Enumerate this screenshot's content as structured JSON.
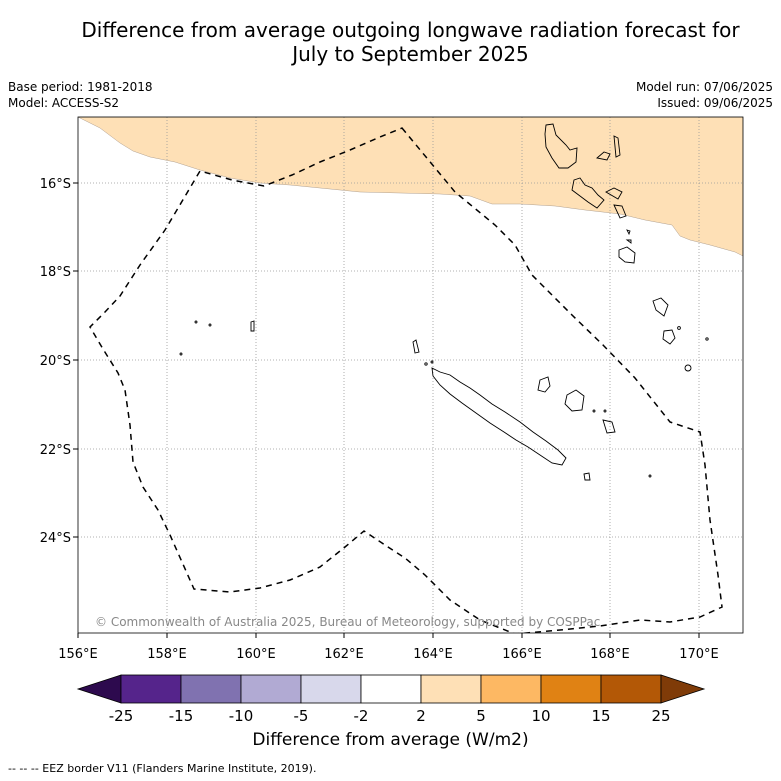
{
  "title_line1": "Difference from average outgoing longwave radiation forecast for",
  "title_line2": "July to September 2025",
  "base_period": "Base period: 1981-2018",
  "model": "Model: ACCESS-S2",
  "model_run": "Model run: 07/06/2025",
  "issued": "Issued: 09/06/2025",
  "lat_labels": [
    "16°S",
    "18°S",
    "20°S",
    "22°S",
    "24°S"
  ],
  "lon_labels": [
    "156°E",
    "158°E",
    "160°E",
    "162°E",
    "164°E",
    "166°E",
    "168°E",
    "170°E"
  ],
  "copyright": "© Commonwealth of Australia 2025, Bureau of Meteorology, supported by COSPPac",
  "colorbar": {
    "label": "Difference from average (W/m2)",
    "ticks": [
      "-25",
      "-15",
      "-10",
      "-5",
      "-2",
      "2",
      "5",
      "10",
      "15",
      "25"
    ],
    "colors": [
      "#2d0a4e",
      "#55248b",
      "#8072b0",
      "#b1aad3",
      "#d8d8eb",
      "#ffffff",
      "#fee0b6",
      "#fdb863",
      "#e08214",
      "#b35806",
      "#7f3b08"
    ]
  },
  "footer": "-- -- -- EEZ border V11 (Flanders Marine Institute, 2019)."
}
